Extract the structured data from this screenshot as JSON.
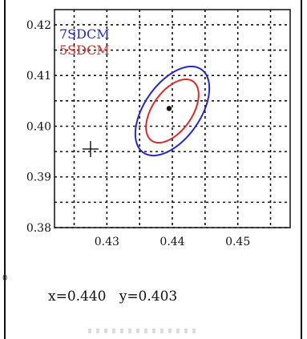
{
  "chart_data": {
    "type": "scatter",
    "xlim": [
      0.422,
      0.458
    ],
    "ylim": [
      0.38,
      0.423
    ],
    "x_ticks": [
      0.43,
      0.44,
      0.45
    ],
    "y_ticks": [
      0.38,
      0.39,
      0.4,
      0.41,
      0.42
    ],
    "x_tick_labels": [
      "0.43",
      "0.44",
      "0.45"
    ],
    "y_tick_labels": [
      "0.38",
      "0.39",
      "0.40",
      "0.41",
      "0.42"
    ],
    "grid": true,
    "legend_position": "top-left",
    "series": [
      {
        "name": "7SDCM",
        "kind": "ellipse",
        "color": "#2626d9",
        "center": [
          0.44,
          0.403
        ],
        "semi_axes": [
          0.0125,
          0.0055
        ],
        "angle_deg": 55
      },
      {
        "name": "5SDCM",
        "kind": "ellipse",
        "color": "#e02828",
        "center": [
          0.44,
          0.403
        ],
        "semi_axes": [
          0.0089,
          0.0039
        ],
        "angle_deg": 55
      }
    ],
    "points": [
      {
        "name": "center",
        "x": 0.4395,
        "y": 0.4035,
        "marker": "dot"
      },
      {
        "name": "cursor",
        "x": 0.4275,
        "y": 0.3955,
        "marker": "cross"
      }
    ],
    "readout": "x=0.440   y=0.403",
    "side_mark": "0"
  }
}
